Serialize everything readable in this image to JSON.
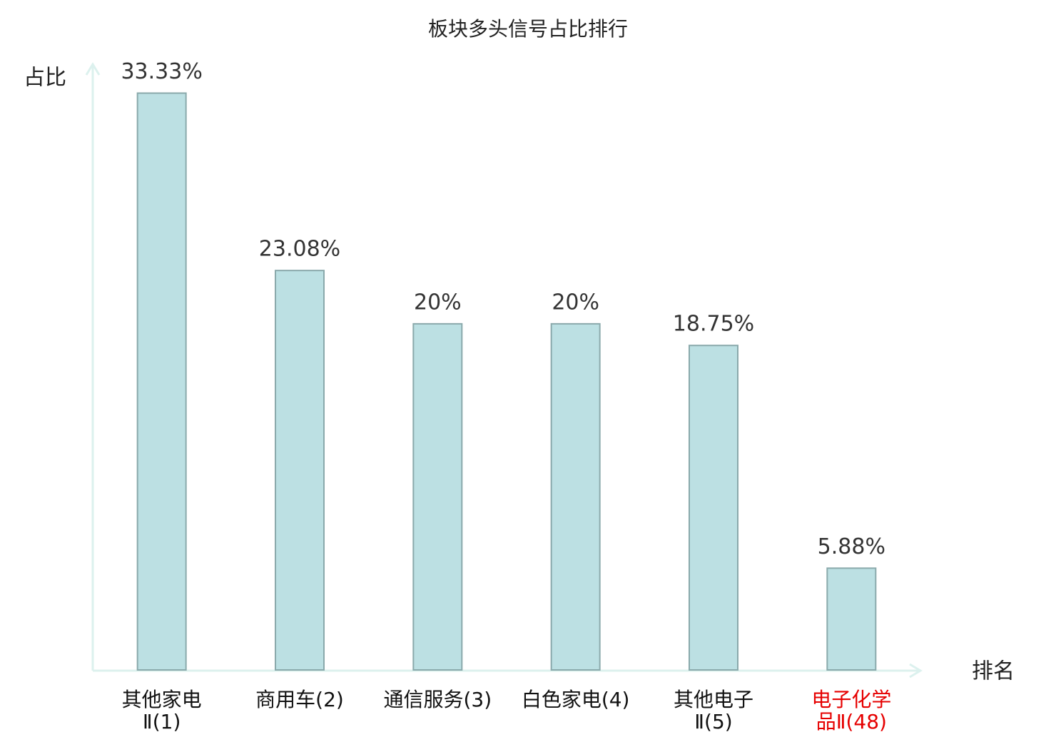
{
  "chart_data": {
    "type": "bar",
    "title": "板块多头信号占比排行",
    "y_label": "占比",
    "x_label": "排名",
    "categories": [
      "其他家电\nⅡ(1)",
      "商用车(2)",
      "通信服务(3)",
      "白色家电(4)",
      "其他电子\nⅡ(5)",
      "电子化学\n品Ⅱ(48)"
    ],
    "values": [
      33.33,
      23.08,
      20,
      20,
      18.75,
      5.88
    ],
    "value_labels": [
      "33.33%",
      "23.08%",
      "20%",
      "20%",
      "18.75%",
      "5.88%"
    ],
    "color": "#bce0e3",
    "edge_color": "#8aa9ab",
    "axis_color": "#dcf1ee",
    "highlight_category": 5,
    "highlight_color": "#e60000",
    "ylim": [
      0,
      35
    ]
  }
}
